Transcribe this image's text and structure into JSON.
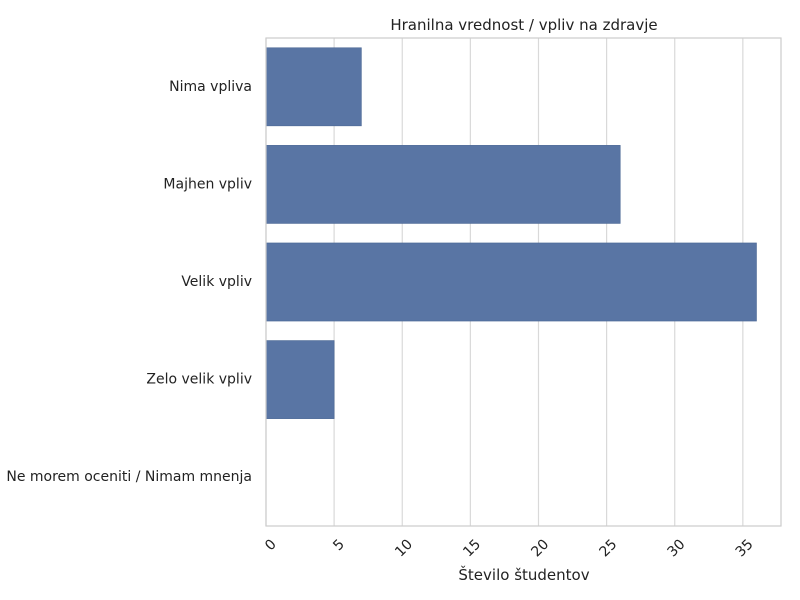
{
  "chart_data": {
    "type": "bar",
    "orientation": "horizontal",
    "title": "Hranilna vrednost / vpliv na zdravje",
    "xlabel": "Število študentov",
    "ylabel": "",
    "categories": [
      "Nima vpliva",
      "Majhen vpliv",
      "Velik vpliv",
      "Zelo velik vpliv",
      "Ne morem oceniti / Nimam mnenja"
    ],
    "values": [
      7,
      26,
      36,
      5,
      0
    ],
    "xlim": [
      0,
      37.8
    ],
    "xticks": [
      "0",
      "5",
      "10",
      "15",
      "20",
      "25",
      "30",
      "35"
    ],
    "grid": true,
    "bar_color": "#5975a4"
  }
}
